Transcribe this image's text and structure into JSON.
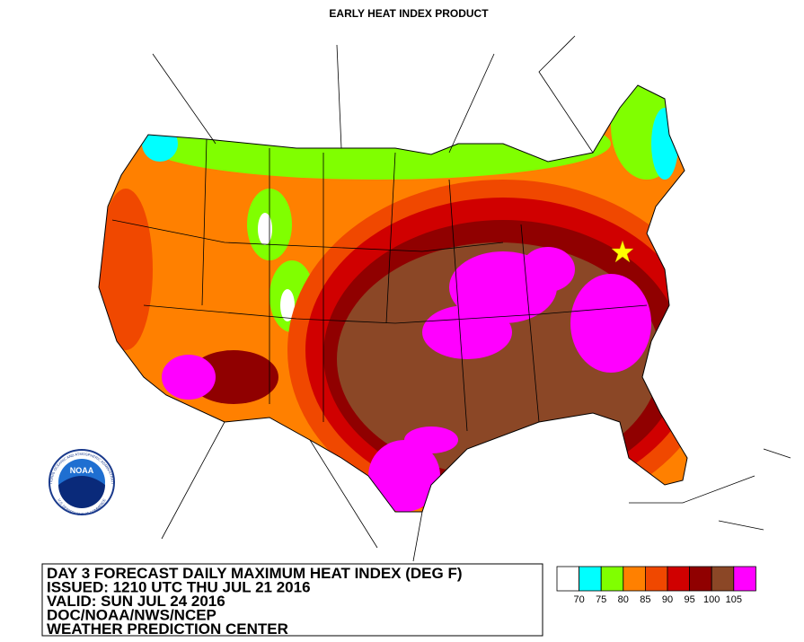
{
  "title": "EARLY HEAT INDEX PRODUCT",
  "info": [
    "DAY 3 FORECAST DAILY MAXIMUM HEAT INDEX (DEG F)",
    "ISSUED: 1210 UTC THU JUL 21 2016",
    "VALID: SUN JUL 24 2016",
    "DOC/NOAA/NWS/NCEP",
    "WEATHER PREDICTION CENTER"
  ],
  "logo": {
    "text": "NOAA",
    "ring_top": "NATIONAL OCEANIC AND ATMOSPHERIC ADMINISTRATION",
    "ring_bottom": "U.S. DEPARTMENT OF COMMERCE"
  },
  "legend": {
    "colors": [
      "#ffffff",
      "#00ffff",
      "#80ff00",
      "#ff8000",
      "#f04800",
      "#d00000",
      "#900000",
      "#8b4726",
      "#ff00ff"
    ],
    "labels": [
      70,
      75,
      80,
      85,
      90,
      95,
      100,
      105
    ]
  }
}
